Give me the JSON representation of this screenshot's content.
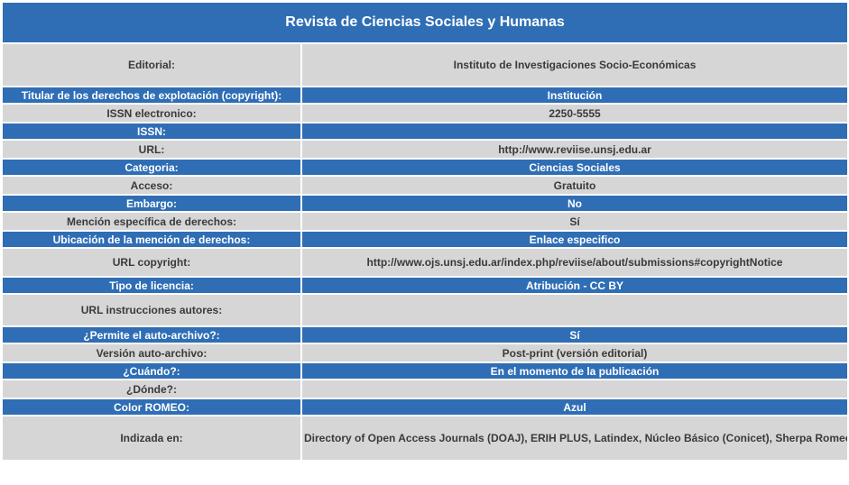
{
  "title": "Revista de Ciencias Sociales y Humanas",
  "rows": [
    {
      "label": "Editorial:",
      "value": "Instituto de Investigaciones Socio-Económicas",
      "style": "gray",
      "height": 46
    },
    {
      "label": "Titular de los derechos de explotación (copyright):",
      "value": "Institución",
      "style": "blue",
      "height": 17
    },
    {
      "label": "ISSN electronico:",
      "value": "2250-5555",
      "style": "gray",
      "height": 19
    },
    {
      "label": "ISSN:",
      "value": "",
      "style": "blue",
      "height": 17
    },
    {
      "label": "URL:",
      "value": "http://www.reviise.unsj.edu.ar",
      "style": "gray",
      "height": 19
    },
    {
      "label": "Categoria:",
      "value": "Ciencias Sociales",
      "style": "blue",
      "height": 17
    },
    {
      "label": "Acceso:",
      "value": "Gratuito",
      "style": "gray",
      "height": 19
    },
    {
      "label": "Embargo:",
      "value": "No",
      "style": "blue",
      "height": 17
    },
    {
      "label": "Mención específica de derechos:",
      "value": "Sí",
      "style": "gray",
      "height": 19
    },
    {
      "label": "Ubicación de la mención de derechos:",
      "value": "Enlace especifico",
      "style": "blue",
      "height": 17
    },
    {
      "label": "URL copyright:",
      "value": "http://www.ojs.unsj.edu.ar/index.php/reviise/about/submissions#copyrightNotice",
      "style": "gray",
      "height": 30
    },
    {
      "label": "Tipo de licencia:",
      "value": "Atribución - CC BY",
      "style": "blue",
      "height": 17
    },
    {
      "label": "URL instrucciones autores:",
      "value": "",
      "style": "gray",
      "height": 34
    },
    {
      "label": "¿Permite el auto-archivo?:",
      "value": "Sí",
      "style": "blue",
      "height": 17
    },
    {
      "label": "Versión auto-archivo:",
      "value": "Post-print (versión editorial)",
      "style": "gray",
      "height": 19
    },
    {
      "label": "¿Cuándo?:",
      "value": "En el momento de la publicación",
      "style": "blue",
      "height": 17
    },
    {
      "label": "¿Dónde?:",
      "value": "",
      "style": "gray",
      "height": 19
    },
    {
      "label": "Color ROMEO:",
      "value": "Azul",
      "style": "blue",
      "height": 17
    },
    {
      "label": "Indizada en:",
      "value": "Directory of Open Access Journals (DOAJ), ERIH PLUS, Latindex, Núcleo Básico (Conicet), Sherpa Romeo",
      "style": "gray",
      "height": 48
    }
  ]
}
